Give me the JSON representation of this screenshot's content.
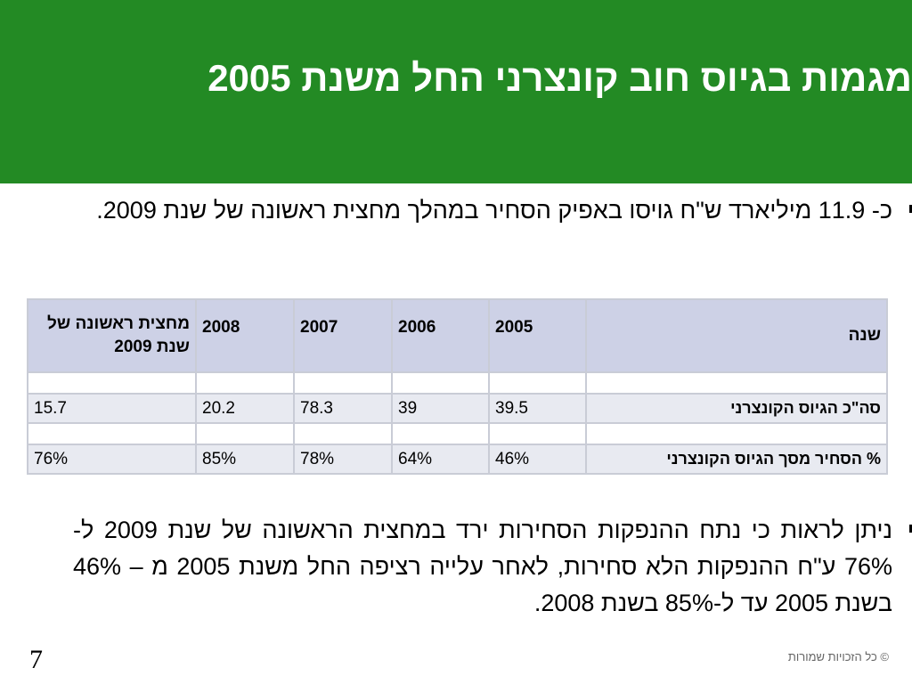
{
  "title": "מגמות בגיוס חוב קונצרני החל משנת 2005",
  "bullets": [
    "כ- 11.9 מיליארד ש\"ח גויסו באפיק הסחיר במהלך מחצית ראשונה של שנת 2009.",
    "ניתן לראות כי נתח ההנפקות הסחירות ירד במחצית הראשונה של שנת 2009 ל- 76% ע\"ח ההנפקות הלא סחירות, לאחר עלייה רציפה החל משנת 2005 מ – 46% בשנת 2005 עד ל-85% בשנת 2008."
  ],
  "table": {
    "headers": [
      "שנה",
      "2005",
      "2006",
      "2007",
      "2008",
      "מחצית ראשונה של שנת 2009"
    ],
    "rows": [
      {
        "label": "סה\"כ הגיוס הקונצרני",
        "values": [
          "39.5",
          "39",
          "78.3",
          "20.2",
          "15.7"
        ]
      },
      {
        "label": "% הסחיר מסך הגיוס הקונצרני",
        "values": [
          "46%",
          "64%",
          "78%",
          "85%",
          "76%"
        ]
      }
    ]
  },
  "colors": {
    "title_bar": "#238a24",
    "header_row": "#cdd1e6",
    "data_row": "#e8eaf1"
  },
  "footer": {
    "page_number": "7",
    "copyright": "© כל הזכויות שמורות"
  }
}
